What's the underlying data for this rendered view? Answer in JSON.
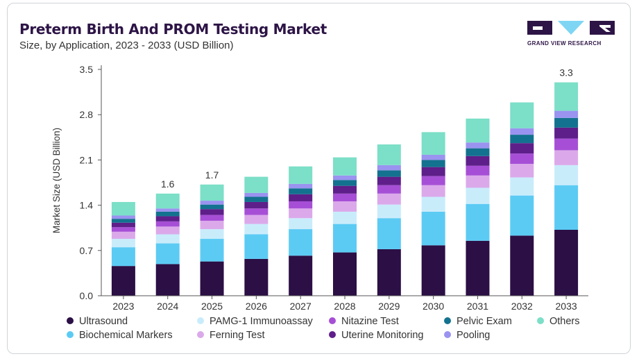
{
  "header": {
    "title": "Preterm Birth And PROM Testing Market",
    "subtitle": "Size, by Application, 2023 - 2033 (USD Billion)"
  },
  "brand": {
    "name": "GRAND VIEW RESEARCH"
  },
  "chart_data": {
    "type": "bar",
    "stacked": true,
    "ylabel": "Market Size (USD Billion)",
    "ylim": [
      0,
      3.5
    ],
    "yticks": [
      "0.0",
      "0.7",
      "1.4",
      "2.1",
      "2.8",
      "3.5"
    ],
    "categories": [
      "2023",
      "2024",
      "2025",
      "2026",
      "2027",
      "2028",
      "2029",
      "2030",
      "2031",
      "2032",
      "2033"
    ],
    "total_labels": {
      "2024": "1.6",
      "2025": "1.7",
      "2033": "3.3"
    },
    "series": [
      {
        "name": "Ultrasound",
        "color": "#2b0f45",
        "values": [
          0.46,
          0.49,
          0.53,
          0.57,
          0.62,
          0.67,
          0.72,
          0.78,
          0.85,
          0.93,
          1.02
        ]
      },
      {
        "name": "Biochemical Markers",
        "color": "#5ccbf4",
        "values": [
          0.29,
          0.32,
          0.35,
          0.38,
          0.41,
          0.44,
          0.48,
          0.52,
          0.57,
          0.62,
          0.69
        ]
      },
      {
        "name": "PAMG-1 Immunoassay",
        "color": "#c9ecfb",
        "values": [
          0.13,
          0.14,
          0.15,
          0.16,
          0.17,
          0.19,
          0.21,
          0.23,
          0.25,
          0.28,
          0.31
        ]
      },
      {
        "name": "Ferning Test",
        "color": "#dba9ea",
        "values": [
          0.11,
          0.12,
          0.13,
          0.14,
          0.15,
          0.16,
          0.17,
          0.18,
          0.19,
          0.21,
          0.23
        ]
      },
      {
        "name": "Nitazine Test",
        "color": "#a64fd6",
        "values": [
          0.07,
          0.08,
          0.09,
          0.1,
          0.11,
          0.12,
          0.13,
          0.14,
          0.15,
          0.16,
          0.18
        ]
      },
      {
        "name": "Uterine Monitoring",
        "color": "#5e1f8a",
        "values": [
          0.07,
          0.08,
          0.09,
          0.1,
          0.11,
          0.12,
          0.13,
          0.14,
          0.15,
          0.16,
          0.17
        ]
      },
      {
        "name": "Pelvic Exam",
        "color": "#13728f",
        "values": [
          0.06,
          0.07,
          0.07,
          0.08,
          0.09,
          0.09,
          0.1,
          0.11,
          0.12,
          0.13,
          0.15
        ]
      },
      {
        "name": "Pooling",
        "color": "#9a93f0",
        "values": [
          0.05,
          0.05,
          0.06,
          0.06,
          0.07,
          0.07,
          0.08,
          0.08,
          0.09,
          0.1,
          0.11
        ]
      },
      {
        "name": "Others",
        "color": "#7cdfc8",
        "values": [
          0.21,
          0.23,
          0.25,
          0.25,
          0.27,
          0.28,
          0.32,
          0.35,
          0.37,
          0.4,
          0.44
        ]
      }
    ],
    "legend_position": "bottom",
    "grid": false
  },
  "legend_layout": [
    [
      "Ultrasound",
      "PAMG-1 Immunoassay",
      "Nitazine Test",
      "Pelvic Exam",
      "Others"
    ],
    [
      "Biochemical Markers",
      "Ferning Test",
      "Uterine Monitoring",
      "Pooling"
    ]
  ]
}
